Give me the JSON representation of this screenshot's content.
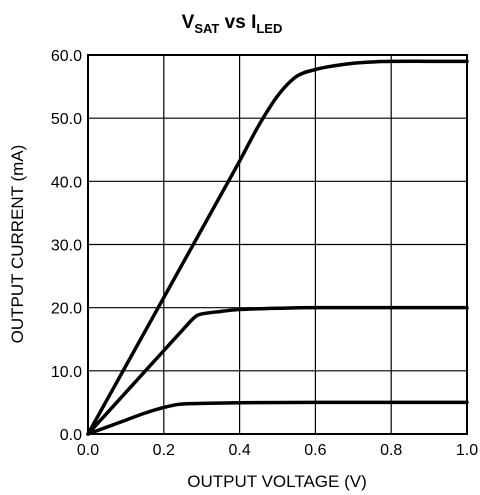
{
  "chart_data": {
    "type": "line",
    "title": {
      "v": "V",
      "v_sub": "SAT",
      "mid": " vs ",
      "i": "I",
      "i_sub": "LED"
    },
    "xlabel": "OUTPUT VOLTAGE (V)",
    "ylabel": "OUTPUT CURRENT (mA)",
    "xlim": [
      0,
      1.0
    ],
    "ylim": [
      0,
      60
    ],
    "grid": true,
    "x_ticks": [
      0,
      0.2,
      0.4,
      0.6,
      0.8,
      1.0
    ],
    "x_tick_labels": [
      "0.0",
      "0.2",
      "0.4",
      "0.6",
      "0.8",
      "1.0"
    ],
    "y_ticks": [
      0,
      10,
      20,
      30,
      40,
      50,
      60
    ],
    "y_tick_labels": [
      "0.0",
      "10.0",
      "20.0",
      "30.0",
      "40.0",
      "50.0",
      "60.0"
    ],
    "series": [
      {
        "x": [
          0,
          0.05,
          0.1,
          0.15,
          0.2,
          0.25,
          0.3,
          0.35,
          0.4,
          0.45,
          0.5,
          0.55,
          0.6,
          0.65,
          0.7,
          0.75,
          0.8,
          0.9,
          1.0
        ],
        "y": [
          0,
          5.4,
          10.8,
          16.2,
          21.6,
          27,
          32.4,
          37.8,
          43.2,
          48.8,
          53.5,
          56.6,
          57.7,
          58.3,
          58.7,
          58.9,
          59,
          59,
          59
        ]
      },
      {
        "x": [
          0,
          0.05,
          0.1,
          0.15,
          0.2,
          0.25,
          0.28,
          0.3,
          0.35,
          0.4,
          0.5,
          0.6,
          0.8,
          1.0
        ],
        "y": [
          0,
          3.3,
          6.6,
          9.9,
          13.2,
          16.5,
          18.4,
          19,
          19.4,
          19.7,
          19.9,
          20,
          20,
          20
        ]
      },
      {
        "x": [
          0,
          0.05,
          0.1,
          0.15,
          0.2,
          0.24,
          0.27,
          0.3,
          0.4,
          0.6,
          0.8,
          1.0
        ],
        "y": [
          0,
          1.1,
          2.2,
          3.3,
          4.2,
          4.7,
          4.8,
          4.85,
          4.95,
          5,
          5,
          5
        ]
      }
    ]
  }
}
